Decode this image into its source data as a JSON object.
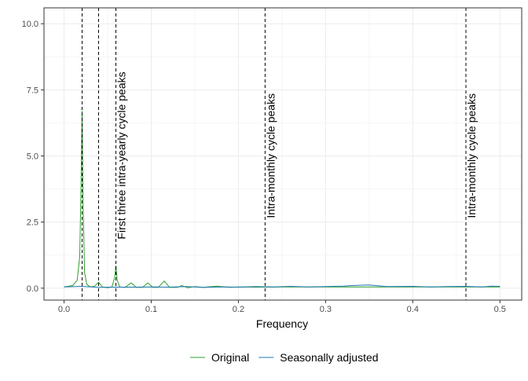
{
  "chart_data": {
    "type": "line",
    "title": "",
    "xlabel": "Frequency",
    "ylabel": "",
    "xlim": [
      -0.023,
      0.525
    ],
    "ylim": [
      -0.45,
      10.6
    ],
    "xticks": [
      0.0,
      0.1,
      0.2,
      0.3,
      0.4,
      0.5
    ],
    "xtick_labels": [
      "0.0",
      "0.1",
      "0.2",
      "0.3",
      "0.4",
      "0.5"
    ],
    "yticks": [
      0,
      2.5,
      5,
      7.5,
      10
    ],
    "ytick_labels": [
      "0.0",
      "2.5",
      "5.0",
      "7.5",
      "10.0"
    ],
    "grid": true,
    "legend_position": "bottom",
    "series": [
      {
        "name": "Original",
        "color": "#2ca02c",
        "x": [
          0.0,
          0.01,
          0.015,
          0.018,
          0.0195,
          0.0207,
          0.022,
          0.0235,
          0.026,
          0.03,
          0.035,
          0.0396,
          0.044,
          0.05,
          0.055,
          0.058,
          0.0595,
          0.061,
          0.064,
          0.07,
          0.077,
          0.083,
          0.09,
          0.096,
          0.102,
          0.108,
          0.115,
          0.121,
          0.13,
          0.135,
          0.142,
          0.15,
          0.16,
          0.175,
          0.19,
          0.2,
          0.22,
          0.25,
          0.3,
          0.35,
          0.4,
          0.45,
          0.5
        ],
        "y": [
          0.05,
          0.1,
          0.3,
          1.2,
          4.0,
          6.7,
          3.0,
          0.6,
          0.15,
          0.05,
          0.08,
          0.22,
          0.05,
          0.02,
          0.05,
          0.4,
          0.85,
          0.3,
          0.05,
          0.03,
          0.2,
          0.03,
          0.03,
          0.2,
          0.03,
          0.03,
          0.27,
          0.03,
          0.03,
          0.1,
          0.02,
          0.06,
          0.03,
          0.08,
          0.03,
          0.05,
          0.04,
          0.05,
          0.05,
          0.05,
          0.05,
          0.05,
          0.05
        ]
      },
      {
        "name": "Seasonally adjusted",
        "color": "#1f77b4",
        "x": [
          0.0,
          0.02,
          0.04,
          0.06,
          0.08,
          0.1,
          0.12,
          0.14,
          0.16,
          0.18,
          0.2,
          0.22,
          0.24,
          0.26,
          0.28,
          0.3,
          0.32,
          0.33,
          0.35,
          0.37,
          0.4,
          0.42,
          0.44,
          0.46,
          0.48,
          0.49,
          0.5
        ],
        "y": [
          0.05,
          0.07,
          0.03,
          0.04,
          0.04,
          0.05,
          0.04,
          0.06,
          0.03,
          0.05,
          0.04,
          0.06,
          0.05,
          0.07,
          0.05,
          0.06,
          0.08,
          0.1,
          0.12,
          0.06,
          0.07,
          0.05,
          0.06,
          0.07,
          0.05,
          0.08,
          0.07
        ]
      }
    ],
    "vlines": [
      0.0207,
      0.0396,
      0.0595,
      0.2306,
      0.461
    ],
    "annotations": [
      {
        "text": "First three intra-yearly cycle peaks",
        "x": 0.0595,
        "y": 1.85
      },
      {
        "text": "Intra-monthly cycle peaks",
        "x": 0.2306,
        "y": 2.65
      },
      {
        "text": "Intra-monthly cycle peaks",
        "x": 0.461,
        "y": 2.65
      }
    ]
  }
}
